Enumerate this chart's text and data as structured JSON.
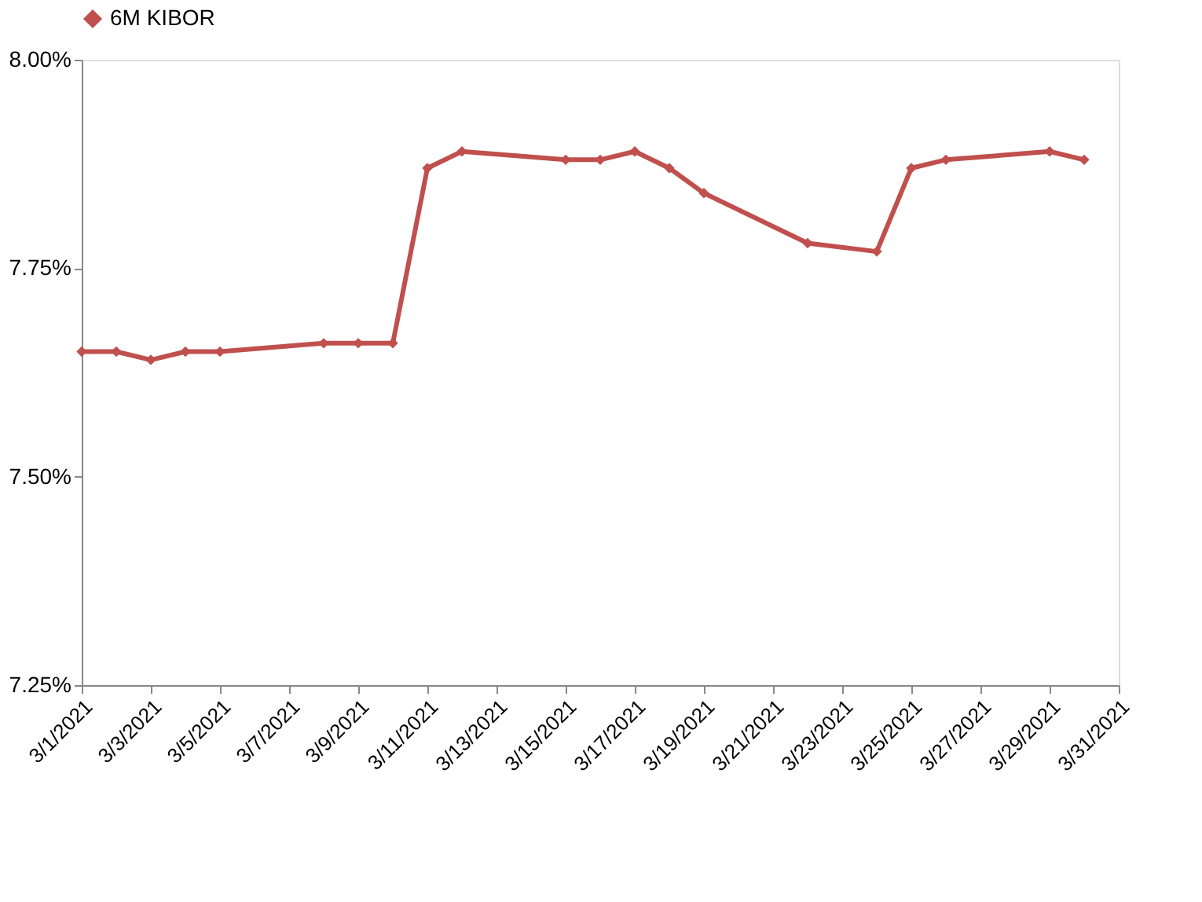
{
  "chart_data": {
    "type": "line",
    "x": [
      "2021-03-01",
      "2021-03-02",
      "2021-03-03",
      "2021-03-04",
      "2021-03-05",
      "2021-03-08",
      "2021-03-09",
      "2021-03-10",
      "2021-03-11",
      "2021-03-12",
      "2021-03-15",
      "2021-03-16",
      "2021-03-17",
      "2021-03-18",
      "2021-03-19",
      "2021-03-22",
      "2021-03-24",
      "2021-03-25",
      "2021-03-26",
      "2021-03-29",
      "2021-03-30"
    ],
    "series": [
      {
        "name": "6M KIBOR",
        "color": "#c0504d",
        "values": [
          7.65,
          7.65,
          7.64,
          7.65,
          7.65,
          7.66,
          7.66,
          7.66,
          7.87,
          7.89,
          7.88,
          7.88,
          7.89,
          7.87,
          7.84,
          7.78,
          7.77,
          7.87,
          7.88,
          7.89,
          7.88
        ]
      }
    ],
    "xlim": [
      "2021-03-01",
      "2021-03-31"
    ],
    "xticks": [
      {
        "value": "2021-03-01",
        "label": "3/1/2021"
      },
      {
        "value": "2021-03-03",
        "label": "3/3/2021"
      },
      {
        "value": "2021-03-05",
        "label": "3/5/2021"
      },
      {
        "value": "2021-03-07",
        "label": "3/7/2021"
      },
      {
        "value": "2021-03-09",
        "label": "3/9/2021"
      },
      {
        "value": "2021-03-11",
        "label": "3/11/2021"
      },
      {
        "value": "2021-03-13",
        "label": "3/13/2021"
      },
      {
        "value": "2021-03-15",
        "label": "3/15/2021"
      },
      {
        "value": "2021-03-17",
        "label": "3/17/2021"
      },
      {
        "value": "2021-03-19",
        "label": "3/19/2021"
      },
      {
        "value": "2021-03-21",
        "label": "3/21/2021"
      },
      {
        "value": "2021-03-23",
        "label": "3/23/2021"
      },
      {
        "value": "2021-03-25",
        "label": "3/25/2021"
      },
      {
        "value": "2021-03-27",
        "label": "3/27/2021"
      },
      {
        "value": "2021-03-29",
        "label": "3/29/2021"
      },
      {
        "value": "2021-03-31",
        "label": "3/31/2021"
      }
    ],
    "ylim": [
      7.25,
      8.0
    ],
    "yticks": [
      {
        "value": 7.25,
        "label": "7.25%"
      },
      {
        "value": 7.5,
        "label": "7.50%"
      },
      {
        "value": 7.75,
        "label": "7.75%"
      },
      {
        "value": 8.0,
        "label": "8.00%"
      }
    ],
    "grid": false,
    "legend": "top",
    "marker": "diamond",
    "line_style": "solid"
  }
}
